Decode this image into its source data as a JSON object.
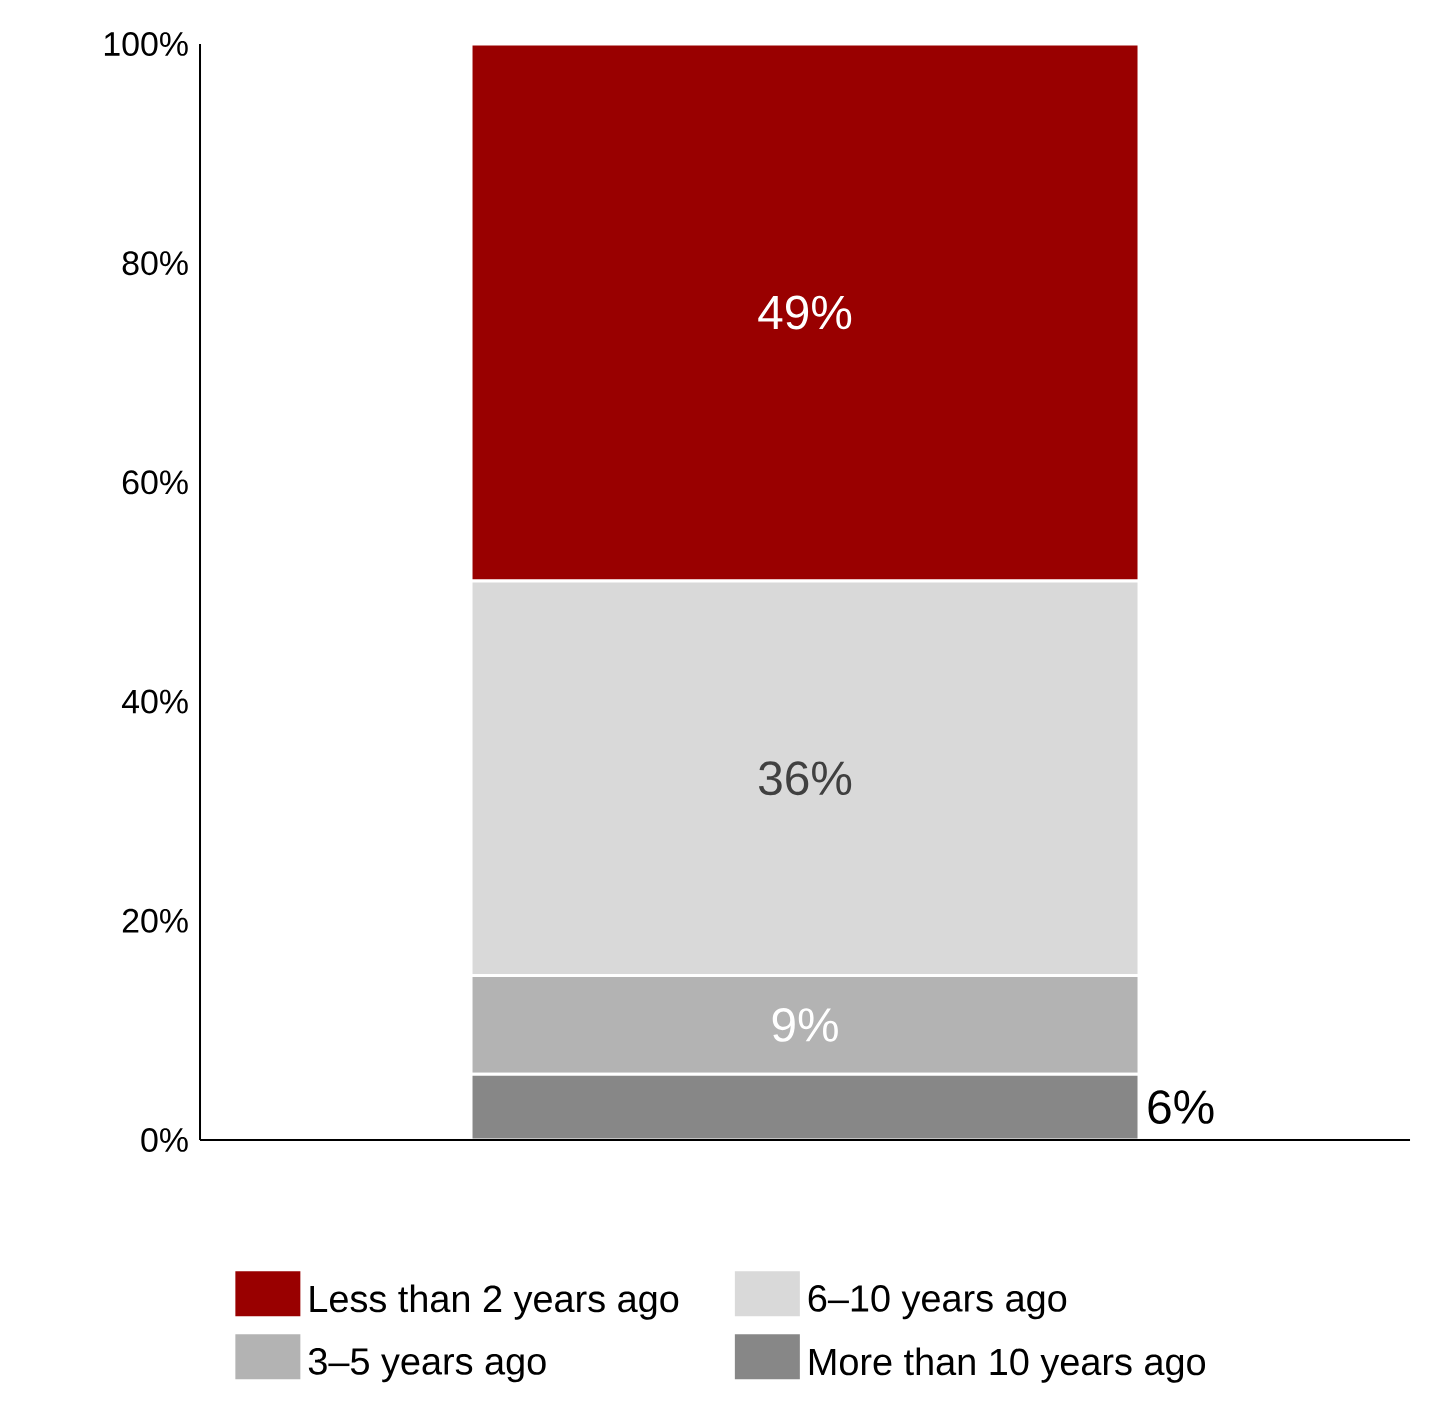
{
  "chart_data": {
    "type": "bar",
    "stacked": true,
    "categories": [
      null
    ],
    "series": [
      {
        "name": "More than 10 years ago",
        "color": "#878787",
        "values": [
          6
        ],
        "value_labels": [
          "6%"
        ]
      },
      {
        "name": "3–5 years ago",
        "color": "#b3b3b3",
        "values": [
          9
        ],
        "value_labels": [
          "9%"
        ]
      },
      {
        "name": "6–10 years ago",
        "color": "#d9d9d9",
        "values": [
          36
        ],
        "value_labels": [
          "36%"
        ]
      },
      {
        "name": "Less than 2 years ago",
        "color": "#990000",
        "values": [
          49
        ],
        "value_labels": [
          "49%"
        ]
      }
    ],
    "ylim": [
      0,
      100
    ],
    "yticks": [
      {
        "value": 0,
        "label": "0%"
      },
      {
        "value": 20,
        "label": "20%"
      },
      {
        "value": 40,
        "label": "40%"
      },
      {
        "value": 60,
        "label": "60%"
      },
      {
        "value": 80,
        "label": "80%"
      },
      {
        "value": 100,
        "label": "100%"
      }
    ],
    "grid": false,
    "legend": "bottom"
  }
}
